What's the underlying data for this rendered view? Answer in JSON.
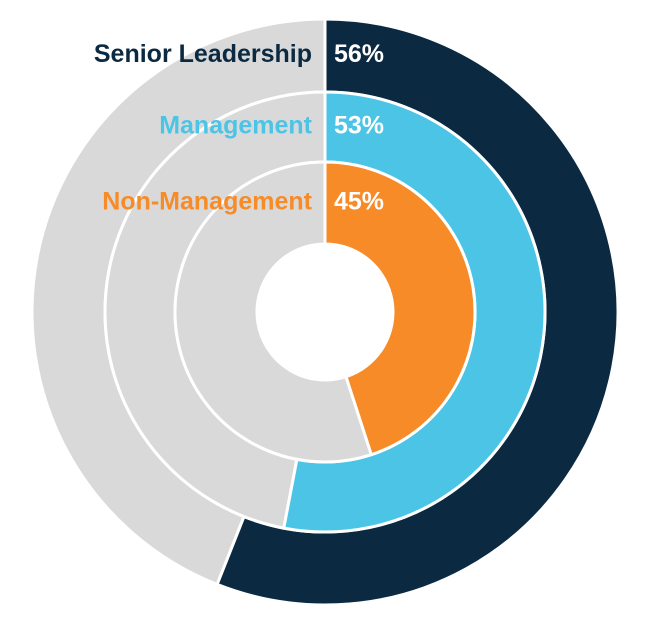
{
  "chart_data": {
    "type": "nested-donut",
    "categories": [
      "Senior Leadership",
      "Management",
      "Non-Management"
    ],
    "values": [
      56,
      53,
      45
    ],
    "value_labels": [
      "56%",
      "53%",
      "45%"
    ],
    "colors": [
      "#0b2a42",
      "#4cc4e6",
      "#f68b28"
    ],
    "track_color": "#d9d9d9",
    "ylim": [
      0,
      100
    ]
  }
}
